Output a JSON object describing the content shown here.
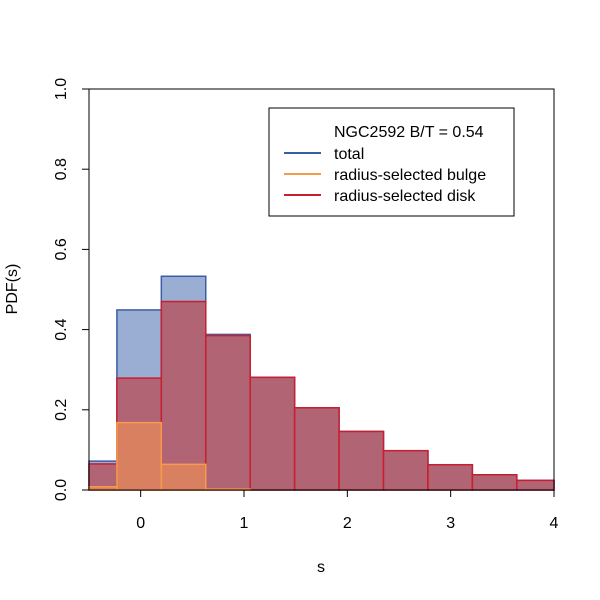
{
  "chart_data": {
    "type": "histogram",
    "xlabel": "s",
    "ylabel": "PDF(s)",
    "xlim": [
      -0.5,
      4
    ],
    "ylim": [
      0,
      1
    ],
    "xticks": [
      "0",
      "1",
      "2",
      "3",
      "4"
    ],
    "yticks": [
      "0.0",
      "0.2",
      "0.4",
      "0.6",
      "0.8",
      "1.0"
    ],
    "grid": false,
    "legend": {
      "placement": "top-right",
      "title": "NGC2592 B/T = 0.54",
      "entries": [
        "total",
        "radius-selected bulge",
        "radius-selected disk"
      ]
    },
    "bin_edges": [
      -0.5,
      -0.23,
      0.2,
      0.63,
      1.06,
      1.49,
      1.92,
      2.35,
      2.78,
      3.21,
      3.64,
      4.0
    ],
    "series": [
      {
        "name": "total",
        "fill_color": "#9aaed3",
        "edge_color": "#3a5da7",
        "values": [
          0.072,
          0.449,
          0.533,
          0.388,
          0.281,
          0.205,
          0.146,
          0.098,
          0.063,
          0.038,
          0.024
        ]
      },
      {
        "name": "radius-selected bulge",
        "fill_color": "#f6b888",
        "edge_color": "#f79a4d",
        "values": [
          0.008,
          0.168,
          0.064,
          0.002,
          0.0,
          0.0,
          0.0,
          0.0,
          0.0,
          0.0,
          0.0
        ]
      },
      {
        "name": "radius-selected disk",
        "fill_color": "#b06474",
        "edge_color": "#c81e30",
        "values": [
          0.065,
          0.279,
          0.47,
          0.385,
          0.281,
          0.205,
          0.146,
          0.098,
          0.063,
          0.038,
          0.024
        ]
      }
    ],
    "overlap_colors": {
      "total_bulge": "#d78a6a",
      "bulge_disk": "#d98060"
    }
  }
}
